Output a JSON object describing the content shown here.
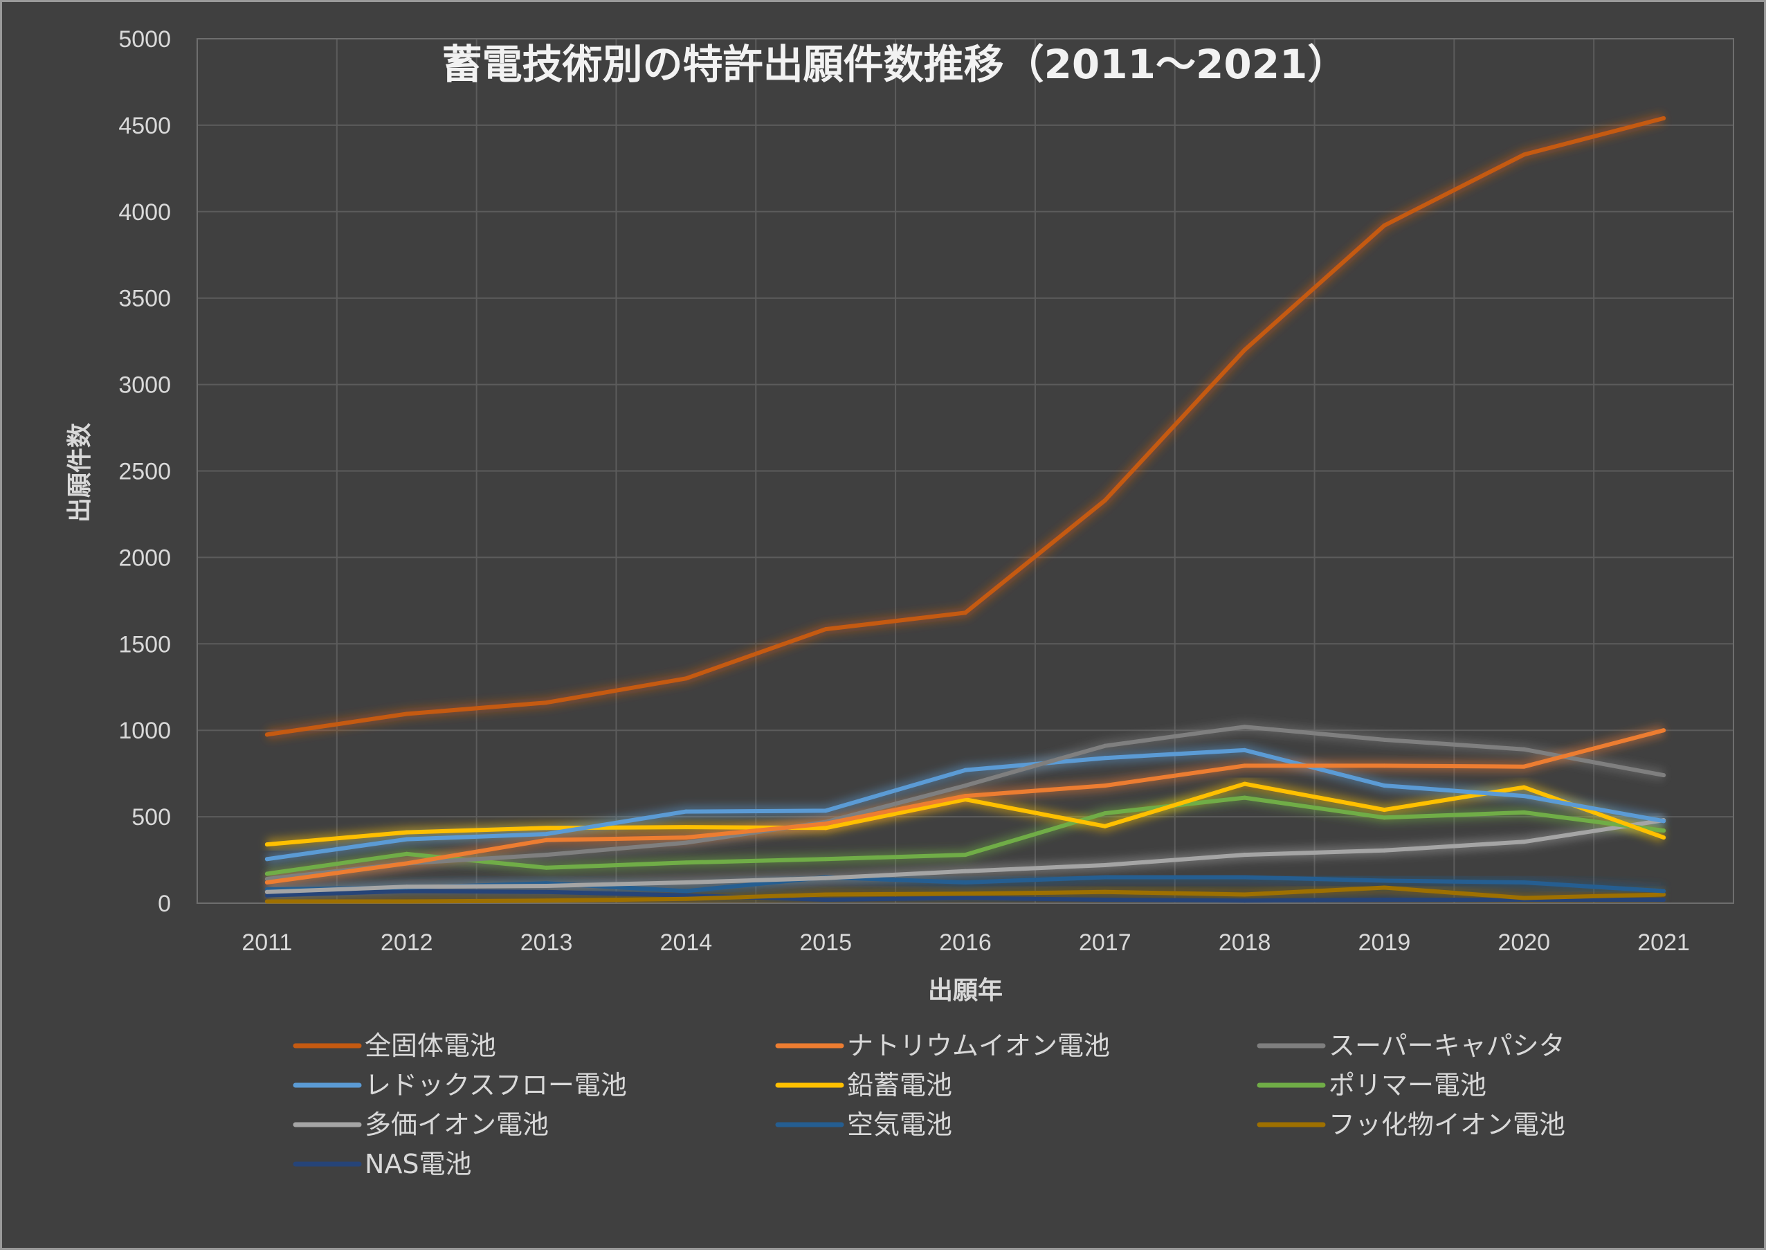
{
  "chart_data": {
    "type": "line",
    "title": "蓄電技術別の特許出願件数推移（2011～2021）",
    "xlabel": "出願年",
    "ylabel": "出願件数",
    "ylim": [
      0,
      5000
    ],
    "yticks": [
      0,
      500,
      1000,
      1500,
      2000,
      2500,
      3000,
      3500,
      4000,
      4500,
      5000
    ],
    "x": [
      "2011",
      "2012",
      "2013",
      "2014",
      "2015",
      "2016",
      "2017",
      "2018",
      "2019",
      "2020",
      "2021"
    ],
    "grid": true,
    "legend": "bottom",
    "series": [
      {
        "name": "全固体電池",
        "color": "#c55a11",
        "values": [
          975,
          1095,
          1160,
          1300,
          1585,
          1680,
          2330,
          3200,
          3920,
          4330,
          4540
        ]
      },
      {
        "name": "ナトリウムイオン電池",
        "color": "#ed7d31",
        "values": [
          120,
          230,
          365,
          380,
          460,
          620,
          680,
          795,
          795,
          790,
          1000
        ]
      },
      {
        "name": "スーパーキャパシタ",
        "color": "#7f7f7f",
        "values": [
          140,
          230,
          280,
          350,
          470,
          680,
          910,
          1020,
          945,
          890,
          740
        ]
      },
      {
        "name": "レドックスフロー電池",
        "color": "#5b9bd5",
        "values": [
          255,
          370,
          400,
          530,
          535,
          770,
          840,
          885,
          680,
          620,
          475
        ]
      },
      {
        "name": "鉛蓄電池",
        "color": "#ffc000",
        "values": [
          340,
          410,
          435,
          440,
          435,
          600,
          445,
          690,
          540,
          670,
          380
        ]
      },
      {
        "name": "ポリマー電池",
        "color": "#70ad47",
        "values": [
          170,
          285,
          205,
          235,
          255,
          280,
          520,
          610,
          495,
          525,
          420
        ]
      },
      {
        "name": "多価イオン電池",
        "color": "#a5a5a5",
        "values": [
          65,
          95,
          100,
          120,
          145,
          185,
          220,
          280,
          305,
          355,
          480
        ]
      },
      {
        "name": "空気電池",
        "color": "#255e91",
        "values": [
          80,
          90,
          115,
          70,
          150,
          120,
          150,
          150,
          130,
          120,
          70
        ]
      },
      {
        "name": "フッ化物イオン電池",
        "color": "#9e7000",
        "values": [
          10,
          10,
          15,
          25,
          50,
          55,
          65,
          50,
          90,
          30,
          50
        ]
      },
      {
        "name": "NAS電池",
        "color": "#264478",
        "values": [
          45,
          70,
          65,
          45,
          20,
          30,
          20,
          15,
          20,
          20,
          20
        ]
      }
    ]
  }
}
